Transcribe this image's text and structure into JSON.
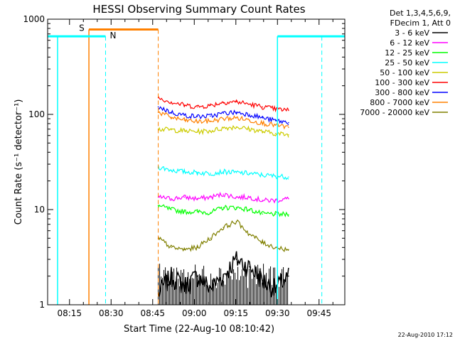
{
  "chart_data": {
    "type": "line",
    "title": "HESSI Observing Summary Count Rates",
    "xlabel": "Start Time (22-Aug-10 08:10:42)",
    "ylabel": "Count Rate (s⁻¹ detector⁻¹)",
    "yscale": "log",
    "ylim": [
      1,
      1000
    ],
    "xlim_minutes": [
      0,
      100
    ],
    "x_ticks": [
      "08:15",
      "08:30",
      "08:45",
      "09:00",
      "09:15",
      "09:30",
      "09:45"
    ],
    "y_ticks": [
      "1",
      "10",
      "100",
      "1000"
    ],
    "legend_title_1": "Det 1,3,4,5,6,9,",
    "legend_title_2": "FDecim 1, Att 0",
    "legend_placement": "right",
    "footer": "22-Aug-2010 17:12",
    "data_window": [
      "08:47",
      "09:34"
    ],
    "series": [
      {
        "name": "3 - 6 keV",
        "color": "#000000",
        "values": [
          1.3,
          2.0,
          1.6,
          2.0,
          1.5,
          2.0,
          3.0,
          2.5,
          1.8,
          1.5,
          2.0
        ]
      },
      {
        "name": "6 - 12 keV",
        "color": "#ff00ff",
        "values": [
          13.5,
          13.0,
          13.5,
          13.0,
          13.5,
          14.5,
          13.5,
          13.5,
          12.5,
          12.5,
          13.0
        ]
      },
      {
        "name": "12 - 25 keV",
        "color": "#00ff00",
        "values": [
          11.0,
          10.0,
          9.5,
          9.5,
          9.3,
          10.5,
          10.5,
          10.0,
          9.0,
          9.0,
          8.8
        ]
      },
      {
        "name": "25 - 50 keV",
        "color": "#00ffff",
        "values": [
          28.0,
          26.0,
          25.0,
          24.5,
          24.0,
          25.0,
          24.5,
          24.0,
          23.0,
          22.5,
          22.0
        ]
      },
      {
        "name": "50 - 100 keV",
        "color": "#cccc00",
        "values": [
          70.0,
          69.0,
          67.0,
          66.0,
          67.0,
          72.0,
          74.0,
          70.0,
          66.0,
          63.0,
          61.0
        ]
      },
      {
        "name": "100 - 300 keV",
        "color": "#ff0000",
        "values": [
          150.0,
          135.0,
          125.0,
          120.0,
          124.0,
          134.0,
          136.0,
          128.0,
          120.0,
          114.0,
          110.0
        ]
      },
      {
        "name": "300 - 800 keV",
        "color": "#0000ff",
        "values": [
          120.0,
          105.0,
          98.0,
          95.0,
          96.0,
          103.0,
          105.0,
          100.0,
          92.0,
          86.0,
          82.0
        ]
      },
      {
        "name": "800 - 7000 keV",
        "color": "#ff8000",
        "values": [
          105.0,
          93.0,
          87.0,
          84.0,
          85.0,
          90.0,
          92.0,
          87.0,
          81.0,
          77.0,
          73.0
        ]
      },
      {
        "name": "7000 - 20000 keV",
        "color": "#808000",
        "values": [
          5.0,
          4.0,
          3.8,
          4.0,
          5.0,
          6.5,
          7.5,
          5.5,
          4.5,
          4.0,
          3.8
        ]
      }
    ],
    "markers": [
      {
        "label": "S",
        "color": "#ff8000",
        "start": "08:22",
        "end": "08:47"
      },
      {
        "label": "N",
        "color": "#00ffff",
        "start": "08:28",
        "end": "09:46"
      }
    ]
  }
}
